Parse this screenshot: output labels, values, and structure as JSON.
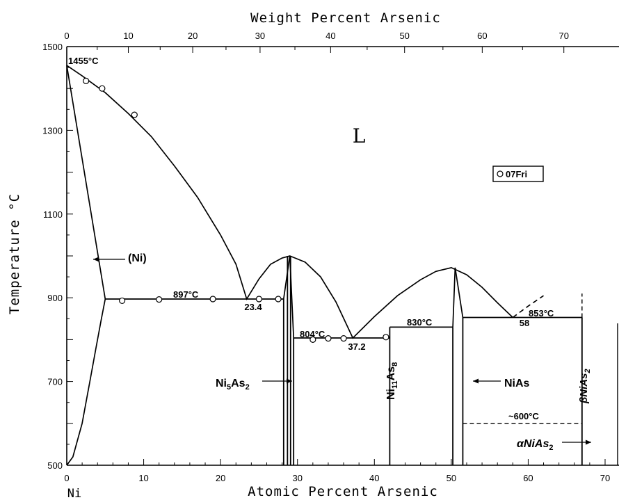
{
  "chart_data": {
    "type": "line",
    "title": "",
    "top_axis": {
      "label": "Weight Percent Arsenic",
      "ticks": [
        "0",
        "10",
        "20",
        "30",
        "40",
        "50",
        "60",
        "70"
      ],
      "tick_at_pct": [
        0,
        10,
        20,
        30,
        40,
        50,
        60,
        70
      ],
      "minor_step": 5
    },
    "xlabel": "Atomic Percent Arsenic",
    "xticks": [
      "0",
      "10",
      "20",
      "30",
      "40",
      "50",
      "60",
      "70"
    ],
    "xlim": [
      0,
      70
    ],
    "ylabel": "Temperature °C",
    "yticks": [
      "500",
      "700",
      "900",
      "1100",
      "1300",
      "1500"
    ],
    "ylim": [
      500,
      1500
    ],
    "corner_label": "Ni",
    "phase_label": "L",
    "legend": {
      "marker": "circle",
      "label": "07Fri",
      "position": "upper-right"
    },
    "liquidus": [
      [
        0,
        1455
      ],
      [
        2,
        1430
      ],
      [
        5,
        1390
      ],
      [
        8,
        1340
      ],
      [
        11,
        1285
      ],
      [
        14,
        1215
      ],
      [
        17,
        1140
      ],
      [
        20,
        1050
      ],
      [
        22,
        980
      ],
      [
        23.4,
        897
      ],
      [
        25,
        945
      ],
      [
        26.5,
        980
      ],
      [
        28,
        995
      ],
      [
        29.0,
        1000
      ],
      [
        31,
        985
      ],
      [
        33,
        950
      ],
      [
        35,
        890
      ],
      [
        37.2,
        804
      ],
      [
        40,
        855
      ],
      [
        43,
        905
      ],
      [
        46,
        943
      ],
      [
        48,
        963
      ],
      [
        50,
        972
      ],
      [
        52,
        955
      ],
      [
        54,
        925
      ],
      [
        56,
        888
      ],
      [
        58,
        853
      ]
    ],
    "liquidus_extension_dashed": [
      [
        58,
        853
      ],
      [
        60,
        880
      ],
      [
        62,
        905
      ]
    ],
    "ni_solidus": [
      [
        0,
        1455
      ],
      [
        5,
        897
      ]
    ],
    "ni_solvus": [
      [
        5,
        897
      ],
      [
        4.5,
        850
      ],
      [
        3.8,
        780
      ],
      [
        3,
        700
      ],
      [
        2,
        600
      ],
      [
        0.8,
        520
      ],
      [
        0,
        500
      ]
    ],
    "ni5as2_liquidus_left": [
      [
        28.2,
        897
      ],
      [
        29.0,
        1000
      ]
    ],
    "ni5as2_liquidus_right": [
      [
        29.5,
        804
      ],
      [
        29.0,
        1000
      ]
    ],
    "nias_apex_left": [
      [
        50.2,
        830
      ],
      [
        50.5,
        972
      ]
    ],
    "nias_apex_right": [
      [
        51.5,
        853
      ],
      [
        50.5,
        972
      ]
    ],
    "isotherms": [
      {
        "temp": 897,
        "from": 5,
        "to": 28.2,
        "label": "897°C"
      },
      {
        "temp": 804,
        "from": 29.5,
        "to": 42,
        "label": "804°C"
      },
      {
        "temp": 830,
        "from": 42,
        "to": 50.2,
        "label": "830°C"
      },
      {
        "temp": 853,
        "from": 51.5,
        "to": 67,
        "label": "853°C"
      }
    ],
    "dashed_isotherm": {
      "temp": 600,
      "from": 51.5,
      "to": 67,
      "label": "~600°C"
    },
    "eutectic_labels": [
      {
        "text": "23.4",
        "x": 23.4,
        "y": 897
      },
      {
        "text": "37.2",
        "x": 37.2,
        "y": 804
      },
      {
        "text": "58",
        "x": 58,
        "y": 853
      }
    ],
    "top_left_label": "1455°C",
    "vertical_phase_lines": [
      {
        "x": 28.2,
        "from": 500,
        "to": 897
      },
      {
        "x": 28.7,
        "from": 500,
        "to": 1000
      },
      {
        "x": 29.1,
        "from": 500,
        "to": 1000
      },
      {
        "x": 29.5,
        "from": 500,
        "to": 804
      },
      {
        "x": 42,
        "from": 500,
        "to": 830
      },
      {
        "x": 50.2,
        "from": 500,
        "to": 830
      },
      {
        "x": 51.5,
        "from": 500,
        "to": 853
      },
      {
        "x": 67,
        "from": 500,
        "to": 853
      }
    ],
    "beta_dashed": {
      "x": 67,
      "from": 853,
      "to": 910
    },
    "points": [
      [
        2.5,
        1418
      ],
      [
        4.6,
        1400
      ],
      [
        8.8,
        1337
      ],
      [
        7.2,
        893
      ],
      [
        12,
        896
      ],
      [
        19,
        897
      ],
      [
        25,
        897
      ],
      [
        27.5,
        897
      ],
      [
        32,
        800
      ],
      [
        34,
        803
      ],
      [
        36,
        803
      ],
      [
        41.5,
        806
      ]
    ],
    "phases": [
      {
        "name": "(Ni)",
        "x": 8.2,
        "y": 992,
        "arrow_to": [
          4.0,
          992
        ],
        "rotated": false
      },
      {
        "name": "Ni5As2",
        "sub": "5",
        "sub2": "2",
        "x": 23,
        "y": 702,
        "arrow_to": [
          28.4,
          702
        ]
      },
      {
        "name": "Ni11As8",
        "x": 41.0,
        "y": 700,
        "rotated": true
      },
      {
        "name": "NiAs",
        "x": 54.5,
        "y": 702,
        "arrow_to": [
          50.6,
          702
        ]
      },
      {
        "name": "βNiAs2",
        "x": 66.4,
        "y": 700,
        "rotated": true
      },
      {
        "name": "αNiAs2",
        "x": 61.5,
        "y": 545,
        "arrow_to": [
          66.6,
          545
        ]
      }
    ]
  },
  "labels": {
    "top_axis_title": "Weight Percent Arsenic",
    "bottom_axis_title": "Atomic Percent Arsenic",
    "y_axis_title": "Temperature °C",
    "ni": "Ni",
    "l": "L",
    "legend_text": "07Fri",
    "t1455": "1455°C",
    "t897": "897°C",
    "t804": "804°C",
    "t830": "830°C",
    "t853": "853°C",
    "t600": "~600°C",
    "e234": "23.4",
    "e372": "37.2",
    "e58": "58",
    "ni_phase": "(Ni)",
    "ni5as2_main": "Ni",
    "ni5as2_sub1": "5",
    "ni5as2_as": "As",
    "ni5as2_sub2": "2",
    "ni11as8_main": "Ni",
    "ni11as8_sub1": "11",
    "ni11as8_as": "As",
    "ni11as8_sub2": "8",
    "nias": "NiAs",
    "beta_main": "βNiAs",
    "beta_sub": "2",
    "alpha_main": "αNiAs",
    "alpha_sub": "2"
  }
}
